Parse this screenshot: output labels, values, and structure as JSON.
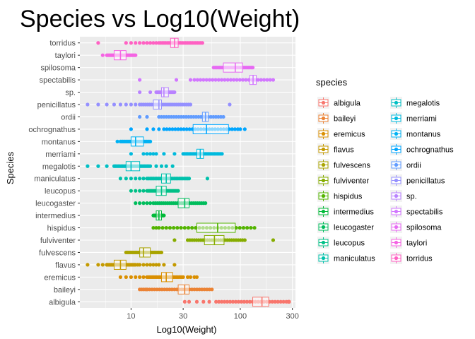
{
  "chart_data": {
    "type": "boxplot",
    "title": "Species vs Log10(Weight)",
    "xlabel": "Log10(Weight)",
    "ylabel": "Species",
    "x_scale": "log10",
    "xlim": [
      3.4,
      320
    ],
    "x_ticks": [
      10,
      30,
      100,
      300
    ],
    "x_tick_labels": [
      "10",
      "30",
      "100",
      "300"
    ],
    "grid": true,
    "legend": {
      "title": "species",
      "placement": "right",
      "columns": 2,
      "entries": [
        "albigula",
        "baileyi",
        "eremicus",
        "flavus",
        "fulvescens",
        "fulviventer",
        "hispidus",
        "intermedius",
        "leucogaster",
        "leucopus",
        "maniculatus",
        "megalotis",
        "merriami",
        "montanus",
        "ochrognathus",
        "ordii",
        "penicillatus",
        "sp.",
        "spectabilis",
        "spilosoma",
        "taylori",
        "torridus"
      ]
    },
    "categories": [
      "albigula",
      "baileyi",
      "eremicus",
      "flavus",
      "fulvescens",
      "fulviventer",
      "hispidus",
      "intermedius",
      "leucogaster",
      "leucopus",
      "maniculatus",
      "megalotis",
      "merriami",
      "montanus",
      "ochrognathus",
      "ordii",
      "penicillatus",
      "sp.",
      "spectabilis",
      "spilosoma",
      "taylori",
      "torridus"
    ],
    "series": [
      {
        "name": "albigula",
        "color": "#F8766D",
        "q1": 130,
        "median": 158,
        "q3": 182,
        "whisker_low": 60,
        "whisker_high": 280,
        "points": [
          31,
          34,
          40,
          46,
          52,
          275,
          280
        ]
      },
      {
        "name": "baileyi",
        "color": "#EB8335",
        "q1": 27,
        "median": 31,
        "q3": 34,
        "whisker_low": 14,
        "whisker_high": 55,
        "points": [
          12,
          12.5,
          13,
          13.5,
          14
        ]
      },
      {
        "name": "eremicus",
        "color": "#DA8F00",
        "q1": 19,
        "median": 21,
        "q3": 24,
        "whisker_low": 14,
        "whisker_high": 30,
        "points": [
          8,
          9,
          10,
          11,
          12,
          13,
          33,
          35,
          38,
          40
        ]
      },
      {
        "name": "flavus",
        "color": "#C49A00",
        "q1": 7,
        "median": 8,
        "q3": 9,
        "whisker_low": 6,
        "whisker_high": 11,
        "points": [
          4,
          5,
          5.5,
          6,
          11.5,
          12,
          13,
          14,
          15,
          16,
          17,
          18,
          20,
          25
        ]
      },
      {
        "name": "fulvescens",
        "color": "#A9A400",
        "q1": 12,
        "median": 13,
        "q3": 15,
        "whisker_low": 9,
        "whisker_high": 19,
        "points": []
      },
      {
        "name": "fulviventer",
        "color": "#86AC00",
        "q1": 47,
        "median": 58,
        "q3": 71,
        "whisker_low": 33,
        "whisker_high": 110,
        "points": [
          25,
          200
        ]
      },
      {
        "name": "hispidus",
        "color": "#53B400",
        "q1": 40,
        "median": 62,
        "q3": 90,
        "whisker_low": 18,
        "whisker_high": 135,
        "points": [
          16,
          17
        ]
      },
      {
        "name": "intermedius",
        "color": "#00BA38",
        "q1": 17,
        "median": 18,
        "q3": 19,
        "whisker_low": 16,
        "whisker_high": 20,
        "points": []
      },
      {
        "name": "leucogaster",
        "color": "#00BD5C",
        "q1": 27,
        "median": 31,
        "q3": 34,
        "whisker_low": 16,
        "whisker_high": 48,
        "points": [
          11,
          12,
          13,
          14,
          15
        ]
      },
      {
        "name": "leucopus",
        "color": "#00C087",
        "q1": 17,
        "median": 19,
        "q3": 21,
        "whisker_low": 14,
        "whisker_high": 27,
        "points": [
          10,
          11,
          12,
          13
        ]
      },
      {
        "name": "maniculatus",
        "color": "#00C1AB",
        "q1": 19,
        "median": 21,
        "q3": 23,
        "whisker_low": 14,
        "whisker_high": 34,
        "points": [
          8,
          9,
          10,
          11,
          12,
          13,
          50
        ]
      },
      {
        "name": "megalotis",
        "color": "#00BFC4",
        "q1": 9,
        "median": 10,
        "q3": 12,
        "whisker_low": 7,
        "whisker_high": 15,
        "points": [
          4,
          5,
          6,
          17,
          19,
          21,
          24
        ]
      },
      {
        "name": "merriami",
        "color": "#00BADE",
        "q1": 40,
        "median": 43,
        "q3": 46,
        "whisker_low": 30,
        "whisker_high": 68,
        "points": [
          10,
          13,
          14,
          15,
          16,
          17,
          20,
          25
        ]
      },
      {
        "name": "montanus",
        "color": "#00B2F3",
        "q1": 10,
        "median": 11,
        "q3": 13,
        "whisker_low": 8,
        "whisker_high": 15,
        "points": [
          7.5
        ]
      },
      {
        "name": "ochrognathus",
        "color": "#00A6FF",
        "q1": 37,
        "median": 49,
        "q3": 78,
        "whisker_low": 20,
        "whisker_high": 95,
        "points": [
          10,
          14,
          16,
          18,
          100,
          110
        ]
      },
      {
        "name": "ordii",
        "color": "#619CFF",
        "q1": 45,
        "median": 48,
        "q3": 51,
        "whisker_low": 18,
        "whisker_high": 70,
        "points": [
          12,
          14
        ]
      },
      {
        "name": "penicillatus",
        "color": "#9590FF",
        "q1": 16,
        "median": 18,
        "q3": 19,
        "whisker_low": 12,
        "whisker_high": 35,
        "points": [
          4,
          5,
          6,
          7,
          8,
          9,
          10,
          11,
          80
        ]
      },
      {
        "name": "sp.",
        "color": "#B983FF",
        "q1": 19,
        "median": 20,
        "q3": 22,
        "whisker_low": 17,
        "whisker_high": 25,
        "points": [
          12,
          15
        ]
      },
      {
        "name": "spectabilis",
        "color": "#D277FF",
        "q1": 122,
        "median": 131,
        "q3": 140,
        "whisker_low": 38,
        "whisker_high": 200,
        "points": [
          12,
          26,
          35
        ]
      },
      {
        "name": "spilosoma",
        "color": "#E76BF3",
        "q1": 70,
        "median": 90,
        "q3": 105,
        "whisker_low": 57,
        "whisker_high": 130,
        "points": []
      },
      {
        "name": "taylori",
        "color": "#F564E3",
        "q1": 7,
        "median": 8,
        "q3": 9,
        "whisker_low": 6,
        "whisker_high": 11,
        "points": [
          5.5
        ]
      },
      {
        "name": "torridus",
        "color": "#FF61C3",
        "q1": 23,
        "median": 25,
        "q3": 27,
        "whisker_low": 18,
        "whisker_high": 45,
        "points": [
          5,
          9,
          10,
          11,
          12,
          13,
          14,
          15,
          16,
          17
        ]
      }
    ]
  }
}
